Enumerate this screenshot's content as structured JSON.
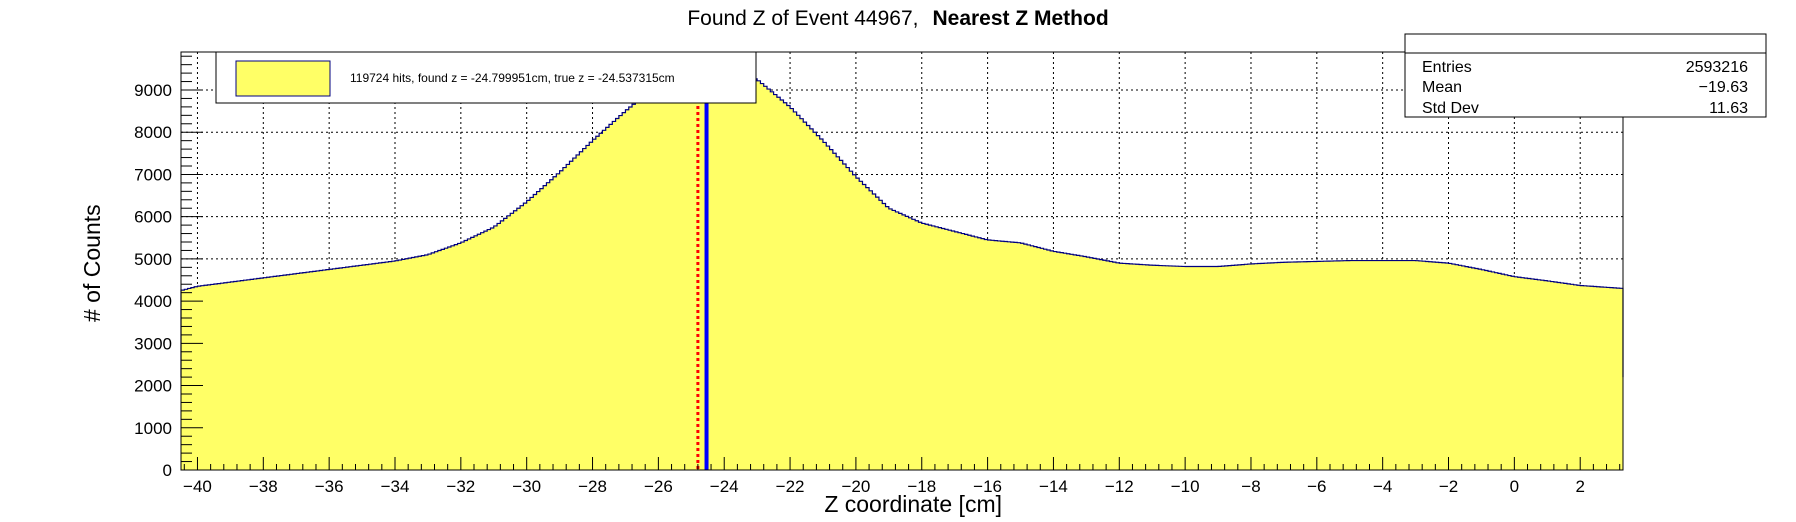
{
  "chart_data": {
    "type": "histogram",
    "title_main": "Found Z of Event 44967,",
    "title_method": "Nearest Z Method",
    "xlabel": "Z coordinate [cm]",
    "ylabel": "# of Counts",
    "xlim": [
      -40.5,
      3.3
    ],
    "ylim": [
      0,
      9900
    ],
    "xticks": [
      -40,
      -38,
      -36,
      -34,
      -32,
      -30,
      -28,
      -26,
      -24,
      -22,
      -20,
      -18,
      -16,
      -14,
      -12,
      -10,
      -8,
      -6,
      -4,
      -2,
      0,
      2
    ],
    "xtick_labels": [
      "−40",
      "−38",
      "−36",
      "−34",
      "−32",
      "−30",
      "−28",
      "−26",
      "−24",
      "−22",
      "−20",
      "−18",
      "−16",
      "−14",
      "−12",
      "−10",
      "−8",
      "−6",
      "−4",
      "−2",
      "0",
      "2"
    ],
    "yticks": [
      0,
      1000,
      2000,
      3000,
      4000,
      5000,
      6000,
      7000,
      8000,
      9000
    ],
    "ytick_labels": [
      "0",
      "1000",
      "2000",
      "3000",
      "4000",
      "5000",
      "6000",
      "7000",
      "8000",
      "9000"
    ],
    "grid": true,
    "fill_color": "#ffff66",
    "line_color": "#000080",
    "histogram_profile": {
      "x": [
        -40.5,
        -40,
        -38,
        -36,
        -34,
        -33,
        -32,
        -31,
        -30,
        -29,
        -28,
        -27,
        -26,
        -25,
        -24.5,
        -24,
        -23,
        -22,
        -21,
        -20,
        -19,
        -18,
        -17,
        -16,
        -15,
        -14,
        -13,
        -12,
        -11,
        -10,
        -9,
        -8,
        -7,
        -6,
        -5,
        -4,
        -3,
        -2,
        -1,
        0,
        1,
        2,
        3.3
      ],
      "y": [
        4250,
        4350,
        4550,
        4750,
        4950,
        5100,
        5380,
        5750,
        6350,
        7050,
        7800,
        8500,
        9150,
        9500,
        9600,
        9520,
        9250,
        8600,
        7800,
        6950,
        6200,
        5850,
        5650,
        5450,
        5380,
        5180,
        5050,
        4900,
        4850,
        4820,
        4820,
        4880,
        4920,
        4940,
        4960,
        4960,
        4960,
        4900,
        4750,
        4580,
        4480,
        4370,
        4300
      ]
    },
    "vertical_lines": [
      {
        "name": "found-z",
        "x": -24.799951,
        "color": "#ff0000",
        "style": "dotted"
      },
      {
        "name": "true-z",
        "x": -24.537315,
        "color": "#0000ff",
        "style": "solid"
      }
    ],
    "legend": {
      "text": "119724 hits, found z = -24.799951cm, true z = -24.537315cm",
      "position": "top-left"
    },
    "stats": {
      "position": "top-right",
      "rows": [
        {
          "label": "Entries",
          "value": "2593216"
        },
        {
          "label": "Mean",
          "value": "−19.63"
        },
        {
          "label": "Std Dev",
          "value": "11.63"
        }
      ]
    }
  }
}
